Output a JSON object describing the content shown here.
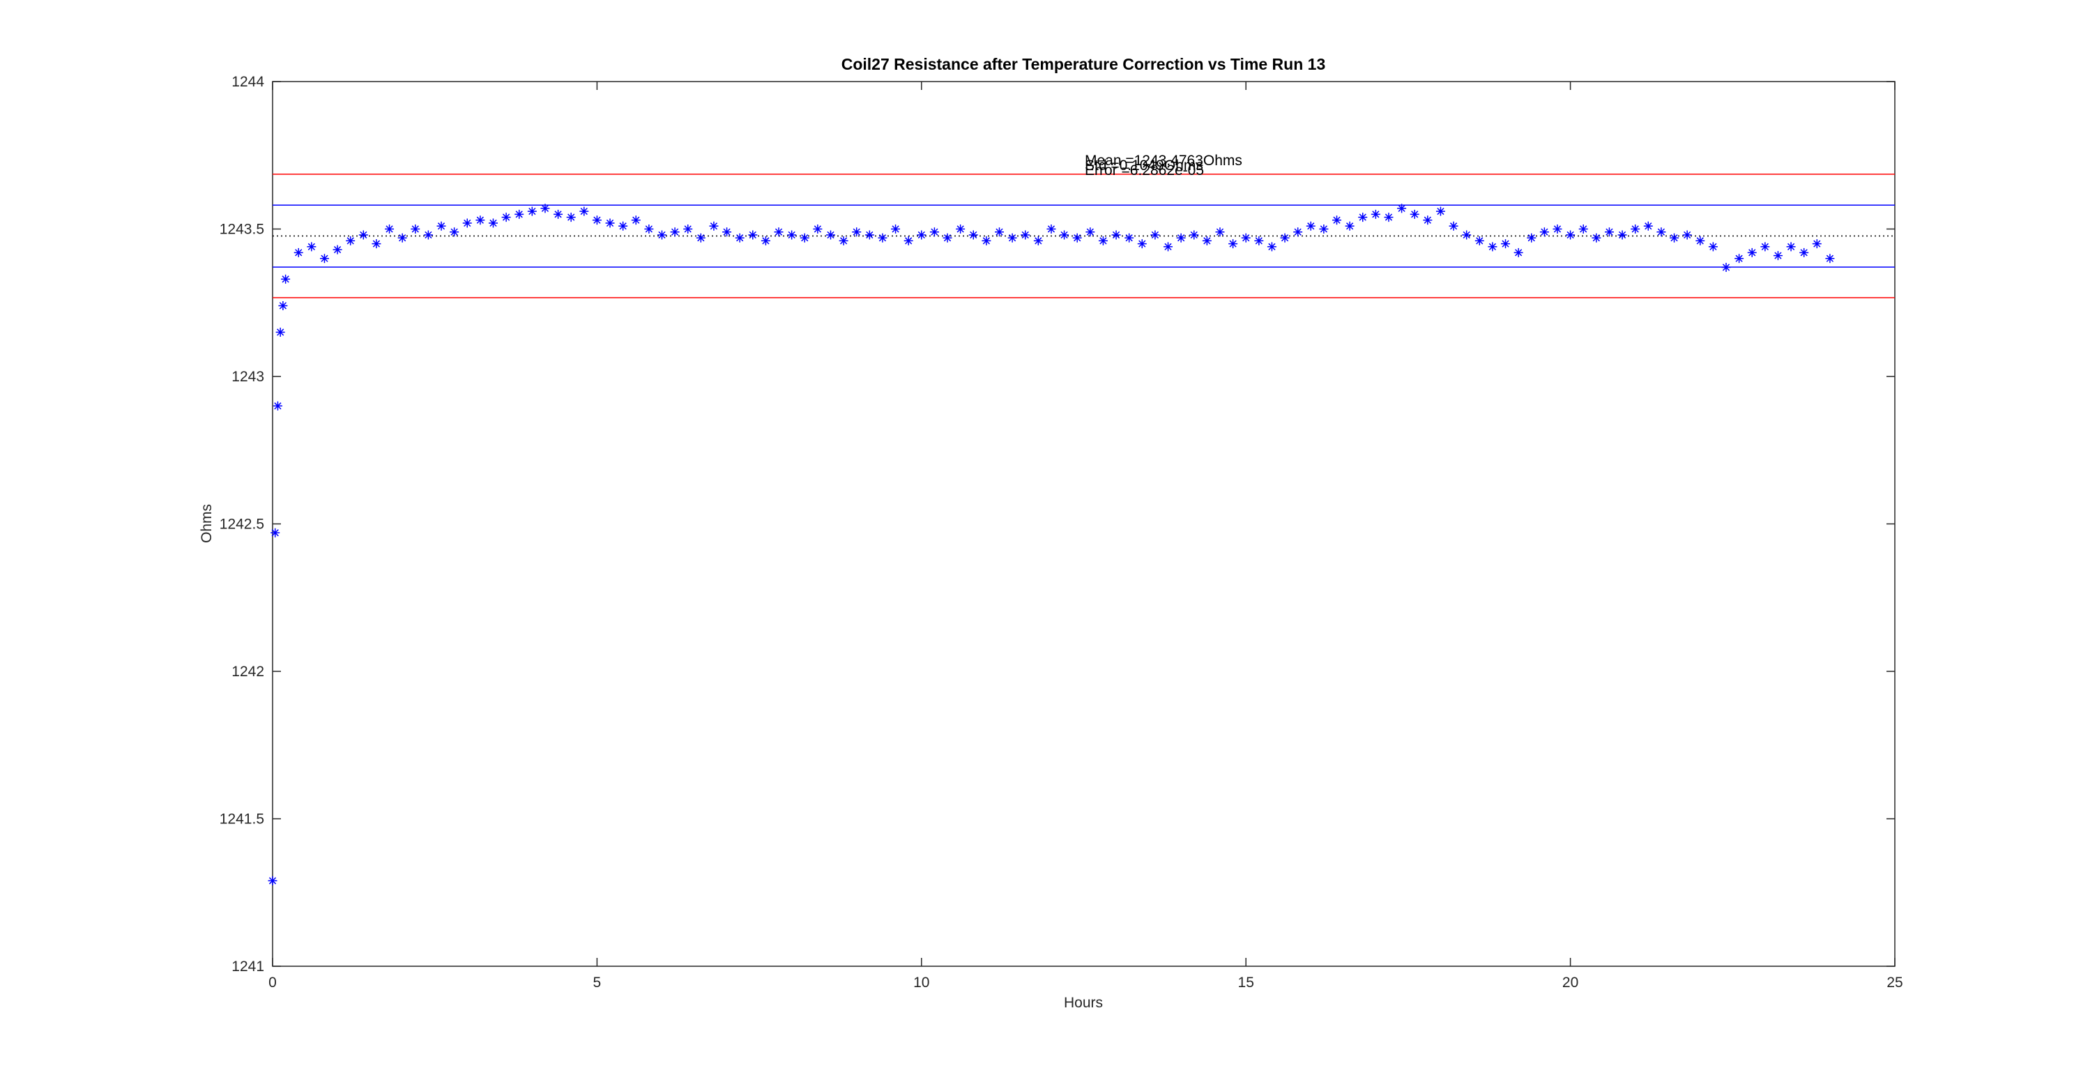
{
  "chart_data": {
    "type": "scatter",
    "title": "Coil27 Resistance after Temperature Correction vs Time Run 13",
    "x_label": "Hours",
    "y_label": "Ohms",
    "xlim": [
      0,
      25
    ],
    "xticks": [
      0,
      5,
      10,
      15,
      20,
      25
    ],
    "ylim": [
      1241,
      1244
    ],
    "yticks": [
      1241,
      1241.5,
      1242,
      1242.5,
      1243,
      1243.5,
      1244
    ],
    "annotations": [
      "Mean =1243.4763Ohms",
      "Std =0.1049Ohms",
      "Error =6.2862e-05"
    ],
    "reference_lines": [
      {
        "value": 1243.686,
        "color": "#ff0000",
        "style": "solid"
      },
      {
        "value": 1243.581,
        "color": "#0000ff",
        "style": "solid"
      },
      {
        "value": 1243.4763,
        "color": "#000000",
        "style": "dotted"
      },
      {
        "value": 1243.371,
        "color": "#0000ff",
        "style": "solid"
      },
      {
        "value": 1243.267,
        "color": "#ff0000",
        "style": "solid"
      }
    ],
    "series": [
      {
        "color": "#0000ff",
        "marker": "asterisk",
        "x": [
          0,
          0.04,
          0.08,
          0.12,
          0.16,
          0.2,
          0.4,
          0.6,
          0.8,
          1,
          1.2,
          1.4,
          1.6,
          1.8,
          2,
          2.2,
          2.4,
          2.6,
          2.8,
          3,
          3.2,
          3.4,
          3.6,
          3.8,
          4,
          4.2,
          4.4,
          4.6,
          4.8,
          5,
          5.2,
          5.4,
          5.6,
          5.8,
          6,
          6.2,
          6.4,
          6.6,
          6.8,
          7,
          7.2,
          7.4,
          7.6,
          7.8,
          8,
          8.2,
          8.4,
          8.6,
          8.8,
          9,
          9.2,
          9.4,
          9.6,
          9.8,
          10,
          10.2,
          10.4,
          10.6,
          10.8,
          11,
          11.2,
          11.4,
          11.6,
          11.8,
          12,
          12.2,
          12.4,
          12.6,
          12.8,
          13,
          13.2,
          13.4,
          13.6,
          13.8,
          14,
          14.2,
          14.4,
          14.6,
          14.8,
          15,
          15.2,
          15.4,
          15.6,
          15.8,
          16,
          16.2,
          16.4,
          16.6,
          16.8,
          17,
          17.2,
          17.4,
          17.6,
          17.8,
          18,
          18.2,
          18.4,
          18.6,
          18.8,
          19,
          19.2,
          19.4,
          19.6,
          19.8,
          20,
          20.2,
          20.4,
          20.6,
          20.8,
          21,
          21.2,
          21.4,
          21.6,
          21.8,
          22,
          22.2,
          22.4,
          22.6,
          22.8,
          23,
          23.2,
          23.4,
          23.6,
          23.8,
          24
        ],
        "values": [
          1241.29,
          1242.47,
          1242.9,
          1243.15,
          1243.24,
          1243.33,
          1243.42,
          1243.44,
          1243.4,
          1243.43,
          1243.46,
          1243.48,
          1243.45,
          1243.5,
          1243.47,
          1243.5,
          1243.48,
          1243.51,
          1243.49,
          1243.52,
          1243.53,
          1243.52,
          1243.54,
          1243.55,
          1243.56,
          1243.57,
          1243.55,
          1243.54,
          1243.56,
          1243.53,
          1243.52,
          1243.51,
          1243.53,
          1243.5,
          1243.48,
          1243.49,
          1243.5,
          1243.47,
          1243.51,
          1243.49,
          1243.47,
          1243.48,
          1243.46,
          1243.49,
          1243.48,
          1243.47,
          1243.5,
          1243.48,
          1243.46,
          1243.49,
          1243.48,
          1243.47,
          1243.5,
          1243.46,
          1243.48,
          1243.49,
          1243.47,
          1243.5,
          1243.48,
          1243.46,
          1243.49,
          1243.47,
          1243.48,
          1243.46,
          1243.5,
          1243.48,
          1243.47,
          1243.49,
          1243.46,
          1243.48,
          1243.47,
          1243.45,
          1243.48,
          1243.44,
          1243.47,
          1243.48,
          1243.46,
          1243.49,
          1243.45,
          1243.47,
          1243.46,
          1243.44,
          1243.47,
          1243.49,
          1243.51,
          1243.5,
          1243.53,
          1243.51,
          1243.54,
          1243.55,
          1243.54,
          1243.57,
          1243.55,
          1243.53,
          1243.56,
          1243.51,
          1243.48,
          1243.46,
          1243.44,
          1243.45,
          1243.42,
          1243.47,
          1243.49,
          1243.5,
          1243.48,
          1243.5,
          1243.47,
          1243.49,
          1243.48,
          1243.5,
          1243.51,
          1243.49,
          1243.47,
          1243.48,
          1243.46,
          1243.44,
          1243.37,
          1243.4,
          1243.42,
          1243.44,
          1243.41,
          1243.44,
          1243.42,
          1243.45,
          1243.4
        ]
      }
    ]
  }
}
